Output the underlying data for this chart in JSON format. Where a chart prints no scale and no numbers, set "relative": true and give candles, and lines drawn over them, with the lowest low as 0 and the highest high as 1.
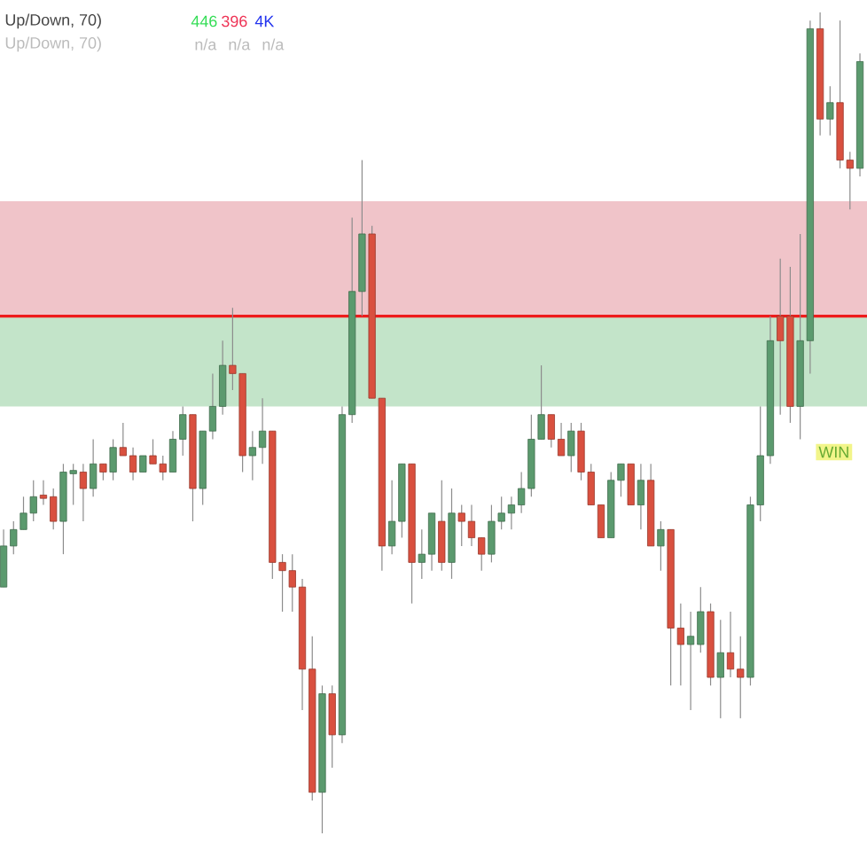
{
  "chart_data": {
    "type": "candlestick",
    "relative": true,
    "categories": [
      null,
      null,
      null,
      null,
      null,
      null,
      null,
      null,
      null,
      null,
      null,
      null,
      null,
      null,
      null,
      null,
      null,
      null,
      null,
      null,
      null,
      null,
      null,
      null,
      null,
      null,
      null,
      null,
      null,
      null,
      null,
      null,
      null,
      null,
      null,
      null,
      null,
      null,
      null,
      null,
      null,
      null,
      null,
      null,
      null,
      null,
      null,
      null,
      null,
      null,
      null,
      null,
      null,
      null,
      null,
      null,
      null,
      null,
      null,
      null,
      null,
      null,
      null,
      null,
      null,
      null,
      null,
      null,
      null,
      null,
      null,
      null,
      null,
      null,
      null,
      null,
      null,
      null,
      null,
      null,
      null,
      null,
      null,
      null,
      null,
      null,
      null
    ],
    "ohlc": [
      [
        0.3,
        0.37,
        0.3,
        0.35
      ],
      [
        0.35,
        0.38,
        0.34,
        0.37
      ],
      [
        0.37,
        0.41,
        0.37,
        0.39
      ],
      [
        0.39,
        0.43,
        0.38,
        0.41
      ],
      [
        0.41,
        0.43,
        0.4,
        0.41
      ],
      [
        0.41,
        0.42,
        0.37,
        0.38
      ],
      [
        0.38,
        0.45,
        0.34,
        0.44
      ],
      [
        0.44,
        0.45,
        0.4,
        0.44
      ],
      [
        0.44,
        0.45,
        0.38,
        0.42
      ],
      [
        0.42,
        0.48,
        0.41,
        0.45
      ],
      [
        0.45,
        0.45,
        0.43,
        0.44
      ],
      [
        0.44,
        0.48,
        0.43,
        0.47
      ],
      [
        0.47,
        0.5,
        0.46,
        0.46
      ],
      [
        0.46,
        0.47,
        0.43,
        0.44
      ],
      [
        0.44,
        0.46,
        0.44,
        0.46
      ],
      [
        0.46,
        0.48,
        0.45,
        0.45
      ],
      [
        0.45,
        0.46,
        0.43,
        0.44
      ],
      [
        0.44,
        0.49,
        0.44,
        0.48
      ],
      [
        0.48,
        0.52,
        0.46,
        0.51
      ],
      [
        0.51,
        0.51,
        0.38,
        0.42
      ],
      [
        0.42,
        0.49,
        0.4,
        0.49
      ],
      [
        0.49,
        0.56,
        0.48,
        0.52
      ],
      [
        0.52,
        0.6,
        0.51,
        0.57
      ],
      [
        0.57,
        0.64,
        0.54,
        0.56
      ],
      [
        0.56,
        0.56,
        0.44,
        0.46
      ],
      [
        0.46,
        0.49,
        0.43,
        0.47
      ],
      [
        0.47,
        0.53,
        0.45,
        0.49
      ],
      [
        0.49,
        0.49,
        0.31,
        0.33
      ],
      [
        0.33,
        0.34,
        0.27,
        0.32
      ],
      [
        0.32,
        0.34,
        0.27,
        0.3
      ],
      [
        0.3,
        0.31,
        0.15,
        0.2
      ],
      [
        0.2,
        0.24,
        0.04,
        0.05
      ],
      [
        0.05,
        0.18,
        0,
        0.17
      ],
      [
        0.17,
        0.18,
        0.08,
        0.12
      ],
      [
        0.12,
        0.52,
        0.11,
        0.51
      ],
      [
        0.51,
        0.75,
        0.5,
        0.66
      ],
      [
        0.66,
        0.82,
        0.63,
        0.73
      ],
      [
        0.73,
        0.74,
        0.53,
        0.53
      ],
      [
        0.53,
        0.53,
        0.32,
        0.35
      ],
      [
        0.35,
        0.43,
        0.34,
        0.38
      ],
      [
        0.38,
        0.45,
        0.36,
        0.45
      ],
      [
        0.45,
        0.45,
        0.28,
        0.33
      ],
      [
        0.33,
        0.37,
        0.31,
        0.34
      ],
      [
        0.34,
        0.39,
        0.32,
        0.39
      ],
      [
        0.38,
        0.43,
        0.32,
        0.33
      ],
      [
        0.33,
        0.42,
        0.31,
        0.39
      ],
      [
        0.39,
        0.4,
        0.35,
        0.38
      ],
      [
        0.38,
        0.4,
        0.35,
        0.36
      ],
      [
        0.36,
        0.36,
        0.32,
        0.34
      ],
      [
        0.34,
        0.4,
        0.33,
        0.38
      ],
      [
        0.38,
        0.41,
        0.37,
        0.39
      ],
      [
        0.39,
        0.41,
        0.37,
        0.4
      ],
      [
        0.4,
        0.44,
        0.39,
        0.42
      ],
      [
        0.42,
        0.51,
        0.41,
        0.48
      ],
      [
        0.48,
        0.57,
        0.48,
        0.51
      ],
      [
        0.51,
        0.51,
        0.47,
        0.48
      ],
      [
        0.48,
        0.5,
        0.46,
        0.46
      ],
      [
        0.46,
        0.5,
        0.44,
        0.49
      ],
      [
        0.49,
        0.5,
        0.43,
        0.44
      ],
      [
        0.44,
        0.45,
        0.4,
        0.4
      ],
      [
        0.4,
        0.4,
        0.36,
        0.36
      ],
      [
        0.36,
        0.44,
        0.36,
        0.43
      ],
      [
        0.43,
        0.45,
        0.41,
        0.45
      ],
      [
        0.45,
        0.45,
        0.4,
        0.4
      ],
      [
        0.4,
        0.45,
        0.37,
        0.43
      ],
      [
        0.43,
        0.45,
        0.35,
        0.35
      ],
      [
        0.35,
        0.38,
        0.32,
        0.37
      ],
      [
        0.37,
        0.37,
        0.18,
        0.25
      ],
      [
        0.25,
        0.28,
        0.18,
        0.23
      ],
      [
        0.23,
        0.27,
        0.15,
        0.24
      ],
      [
        0.23,
        0.3,
        0.22,
        0.27
      ],
      [
        0.27,
        0.28,
        0.18,
        0.19
      ],
      [
        0.19,
        0.26,
        0.14,
        0.22
      ],
      [
        0.22,
        0.27,
        0.19,
        0.2
      ],
      [
        0.2,
        0.24,
        0.14,
        0.19
      ],
      [
        0.19,
        0.41,
        0.18,
        0.4
      ],
      [
        0.4,
        0.52,
        0.38,
        0.46
      ],
      [
        0.46,
        0.63,
        0.45,
        0.6
      ],
      [
        0.63,
        0.7,
        0.51,
        0.6
      ],
      [
        0.63,
        0.69,
        0.5,
        0.52
      ],
      [
        0.52,
        0.73,
        0.48,
        0.6
      ],
      [
        0.6,
        0.99,
        0.56,
        0.98
      ],
      [
        0.98,
        1,
        0.85,
        0.87
      ],
      [
        0.87,
        0.91,
        0.85,
        0.89
      ],
      [
        0.89,
        0.99,
        0.81,
        0.82
      ],
      [
        0.82,
        0.83,
        0.76,
        0.81
      ],
      [
        0.81,
        0.95,
        0.8,
        0.94
      ]
    ],
    "colors": [
      "#5b9a6e",
      "#5b9a6e",
      "#5b9a6e",
      "#5b9a6e",
      "#d9503f",
      "#d9503f",
      "#5b9a6e",
      "#5b9a6e",
      "#d9503f",
      "#5b9a6e",
      "#d9503f",
      "#5b9a6e",
      "#d9503f",
      "#d9503f",
      "#5b9a6e",
      "#d9503f",
      "#d9503f",
      "#5b9a6e",
      "#5b9a6e",
      "#d9503f",
      "#5b9a6e",
      "#5b9a6e",
      "#5b9a6e",
      "#d9503f",
      "#d9503f",
      "#5b9a6e",
      "#5b9a6e",
      "#d9503f",
      "#d9503f",
      "#d9503f",
      "#d9503f",
      "#d9503f",
      "#5b9a6e",
      "#d9503f",
      "#5b9a6e",
      "#5b9a6e",
      "#5b9a6e",
      "#d9503f",
      "#d9503f",
      "#5b9a6e",
      "#5b9a6e",
      "#d9503f",
      "#5b9a6e",
      "#5b9a6e",
      "#d9503f",
      "#5b9a6e",
      "#d9503f",
      "#d9503f",
      "#d9503f",
      "#5b9a6e",
      "#5b9a6e",
      "#5b9a6e",
      "#5b9a6e",
      "#5b9a6e",
      "#5b9a6e",
      "#d9503f",
      "#d9503f",
      "#5b9a6e",
      "#d9503f",
      "#d9503f",
      "#d9503f",
      "#5b9a6e",
      "#5b9a6e",
      "#d9503f",
      "#5b9a6e",
      "#d9503f",
      "#5b9a6e",
      "#d9503f",
      "#d9503f",
      "#5b9a6e",
      "#5b9a6e",
      "#d9503f",
      "#5b9a6e",
      "#d9503f",
      "#d9503f",
      "#5b9a6e",
      "#5b9a6e",
      "#5b9a6e",
      "#d9503f",
      "#d9503f",
      "#5b9a6e",
      "#5b9a6e",
      "#d9503f",
      "#5b9a6e",
      "#d9503f",
      "#d9503f",
      "#5b9a6e"
    ],
    "bands": [
      {
        "axis": "y",
        "from": 0.63,
        "to": 0.77,
        "color": "#f0c4c9"
      },
      {
        "axis": "y",
        "from": 0.52,
        "to": 0.63,
        "color": "#c3e4c9"
      }
    ],
    "ref_lines": [
      {
        "axis": "y",
        "value": 0.63,
        "color": "#ee1c1c"
      }
    ],
    "annotations": [
      "Up/Down, 70)",
      "446",
      "396",
      "4K",
      "Up/Down, 70)",
      "n/a",
      "n/a",
      "n/a",
      "WIN"
    ]
  }
}
